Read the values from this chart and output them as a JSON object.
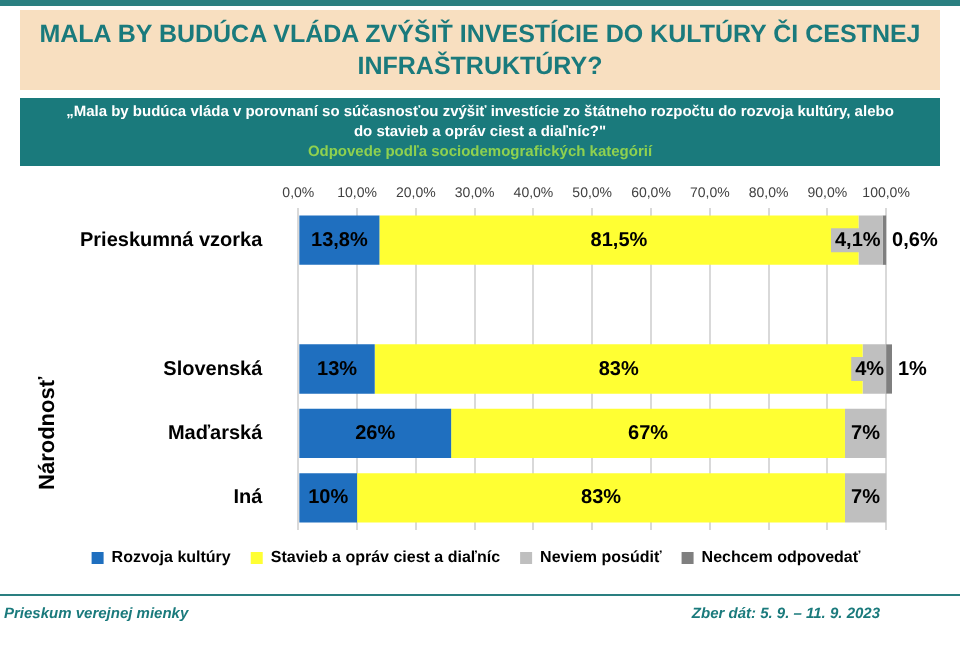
{
  "chart_data": {
    "type": "bar",
    "orientation": "horizontal",
    "stacked": true,
    "title": "MALA BY BUDÚCA VLÁDA ZVÝŠIŤ INVESTÍCIE DO KULTÚRY ČI CESTNEJ INFRAŠTRUKTÚRY?",
    "subtitle": "„Mala by budúca vláda v porovnaní so súčasnosťou zvýšiť investície zo štátneho rozpočtu do rozvoja kultúry, alebo do stavieb a opráv ciest a diaľníc?\"",
    "annotations": [
      "Odpovede podľa sociodemografických kategórií",
      "Národnosť",
      "Prieskum verejnej mienky",
      "Zber dát: 5. 9. – 11. 9. 2023"
    ],
    "categories": [
      "Prieskumná vzorka",
      null,
      "Slovenská",
      "Maďarská",
      "Iná"
    ],
    "series": [
      {
        "name": "Rozvoja kultúry",
        "color": "#1f6fbf",
        "values": [
          13.8,
          null,
          13,
          26,
          10
        ],
        "value_labels": [
          "13,8%",
          null,
          "13%",
          "26%",
          "10%"
        ]
      },
      {
        "name": "Stavieb a opráv ciest a diaľníc",
        "color": "#ffff33",
        "values": [
          81.5,
          null,
          83,
          67,
          83
        ],
        "value_labels": [
          "81,5%",
          null,
          "83%",
          "67%",
          "83%"
        ]
      },
      {
        "name": "Neviem posúdiť",
        "color": "#bfbfbf",
        "values": [
          4.1,
          null,
          4,
          7,
          7
        ],
        "value_labels": [
          "4,1%",
          null,
          "4%",
          "7%",
          "7%"
        ]
      },
      {
        "name": "Nechcem odpovedať",
        "color": "#7f7f7f",
        "values": [
          0.6,
          null,
          1,
          null,
          null
        ],
        "value_labels": [
          "0,6%",
          null,
          "1%",
          null,
          null
        ]
      }
    ],
    "xlim": [
      0,
      101
    ],
    "xticks": [
      {
        "value": 0,
        "label": "0,0%"
      },
      {
        "value": 10,
        "label": "10,0%"
      },
      {
        "value": 20,
        "label": "20,0%"
      },
      {
        "value": 30,
        "label": "30,0%"
      },
      {
        "value": 40,
        "label": "40,0%"
      },
      {
        "value": 50,
        "label": "50,0%"
      },
      {
        "value": 60,
        "label": "60,0%"
      },
      {
        "value": 70,
        "label": "70,0%"
      },
      {
        "value": 80,
        "label": "80,0%"
      },
      {
        "value": 90,
        "label": "90,0%"
      },
      {
        "value": 100,
        "label": "100,0%"
      }
    ],
    "grid": "x",
    "legend": "bottom"
  }
}
